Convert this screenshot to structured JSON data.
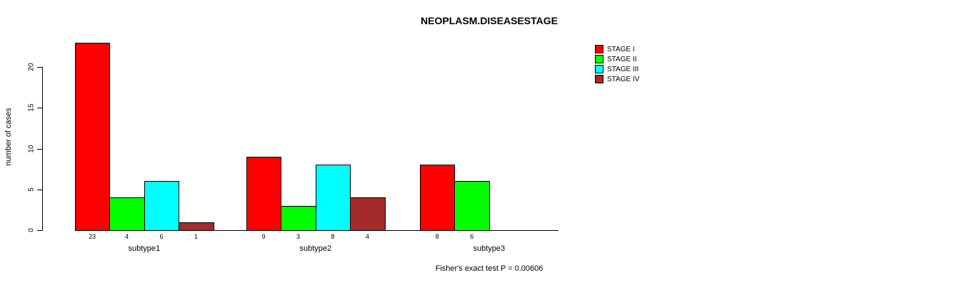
{
  "title": "NEOPLASM.DISEASESTAGE",
  "footnote": "Fisher's exact test P = 0.00606",
  "colors": {
    "stage_i": "#FF0000",
    "stage_ii": "#00FF00",
    "stage_iii": "#00FFFF",
    "stage_iv": "#A52A2A",
    "axis": "#000000",
    "background": "#FFFFFF"
  },
  "chart_data": {
    "type": "bar",
    "title": "NEOPLASM.DISEASESTAGE",
    "xlabel": "",
    "ylabel": "number of cases",
    "ylim": [
      0,
      23
    ],
    "yticks": [
      0,
      5,
      10,
      15,
      20
    ],
    "grid": false,
    "legend_position": "top-right",
    "bar_value_labels_shown": true,
    "categories": [
      "subtype1",
      "subtype2",
      "subtype3"
    ],
    "series": [
      {
        "name": "STAGE I",
        "color": "#FF0000",
        "values": [
          23,
          9,
          8
        ]
      },
      {
        "name": "STAGE II",
        "color": "#00FF00",
        "values": [
          4,
          3,
          6
        ]
      },
      {
        "name": "STAGE III",
        "color": "#00FFFF",
        "values": [
          6,
          8,
          0
        ]
      },
      {
        "name": "STAGE IV",
        "color": "#A52A2A",
        "values": [
          1,
          4,
          0
        ]
      }
    ],
    "annotation": "Fisher's exact test P = 0.00606"
  }
}
